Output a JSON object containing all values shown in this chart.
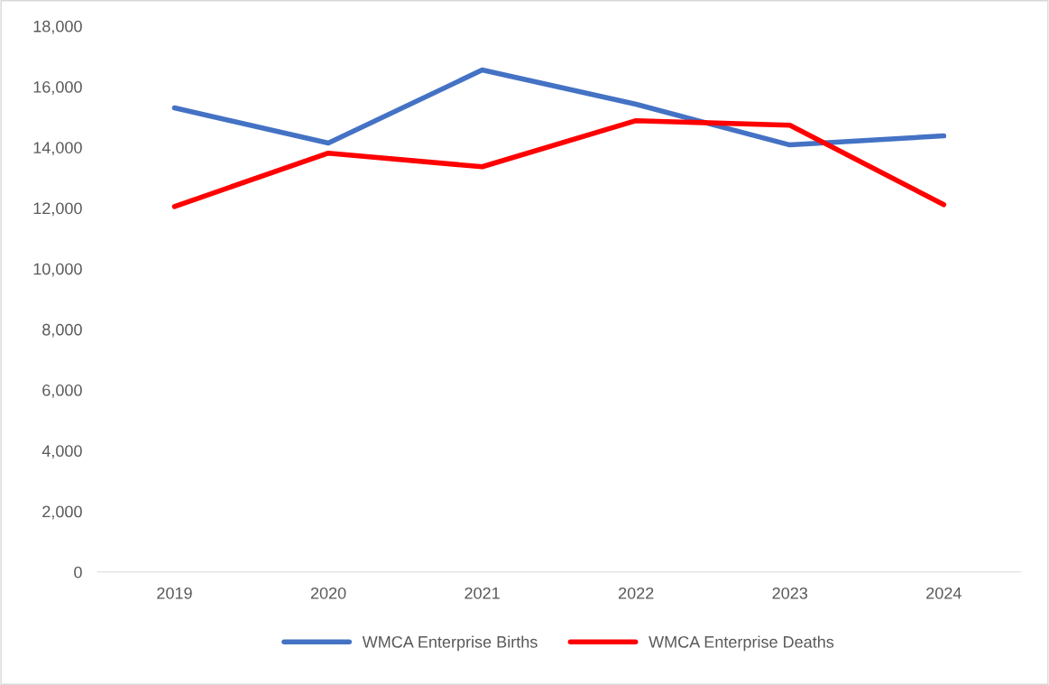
{
  "chart_data": {
    "type": "line",
    "categories": [
      "2019",
      "2020",
      "2021",
      "2022",
      "2023",
      "2024"
    ],
    "series": [
      {
        "name": "WMCA Enterprise Births",
        "color": "#4472c4",
        "values": [
          15300,
          14140,
          16550,
          15420,
          14080,
          14380
        ]
      },
      {
        "name": "WMCA Enterprise Deaths",
        "color": "#ff0000",
        "values": [
          12050,
          13810,
          13360,
          14880,
          14730,
          12110
        ]
      }
    ],
    "ylim": [
      0,
      18000
    ],
    "yticks": [
      {
        "value": 0,
        "label": "0"
      },
      {
        "value": 2000,
        "label": "2,000"
      },
      {
        "value": 4000,
        "label": "4,000"
      },
      {
        "value": 6000,
        "label": "6,000"
      },
      {
        "value": 8000,
        "label": "8,000"
      },
      {
        "value": 10000,
        "label": "10,000"
      },
      {
        "value": 12000,
        "label": "12,000"
      },
      {
        "value": 14000,
        "label": "14,000"
      },
      {
        "value": 16000,
        "label": "16,000"
      },
      {
        "value": 18000,
        "label": "18,000"
      }
    ],
    "grid": false,
    "legend": "bottom",
    "marker": "none",
    "line_style": "solid"
  }
}
